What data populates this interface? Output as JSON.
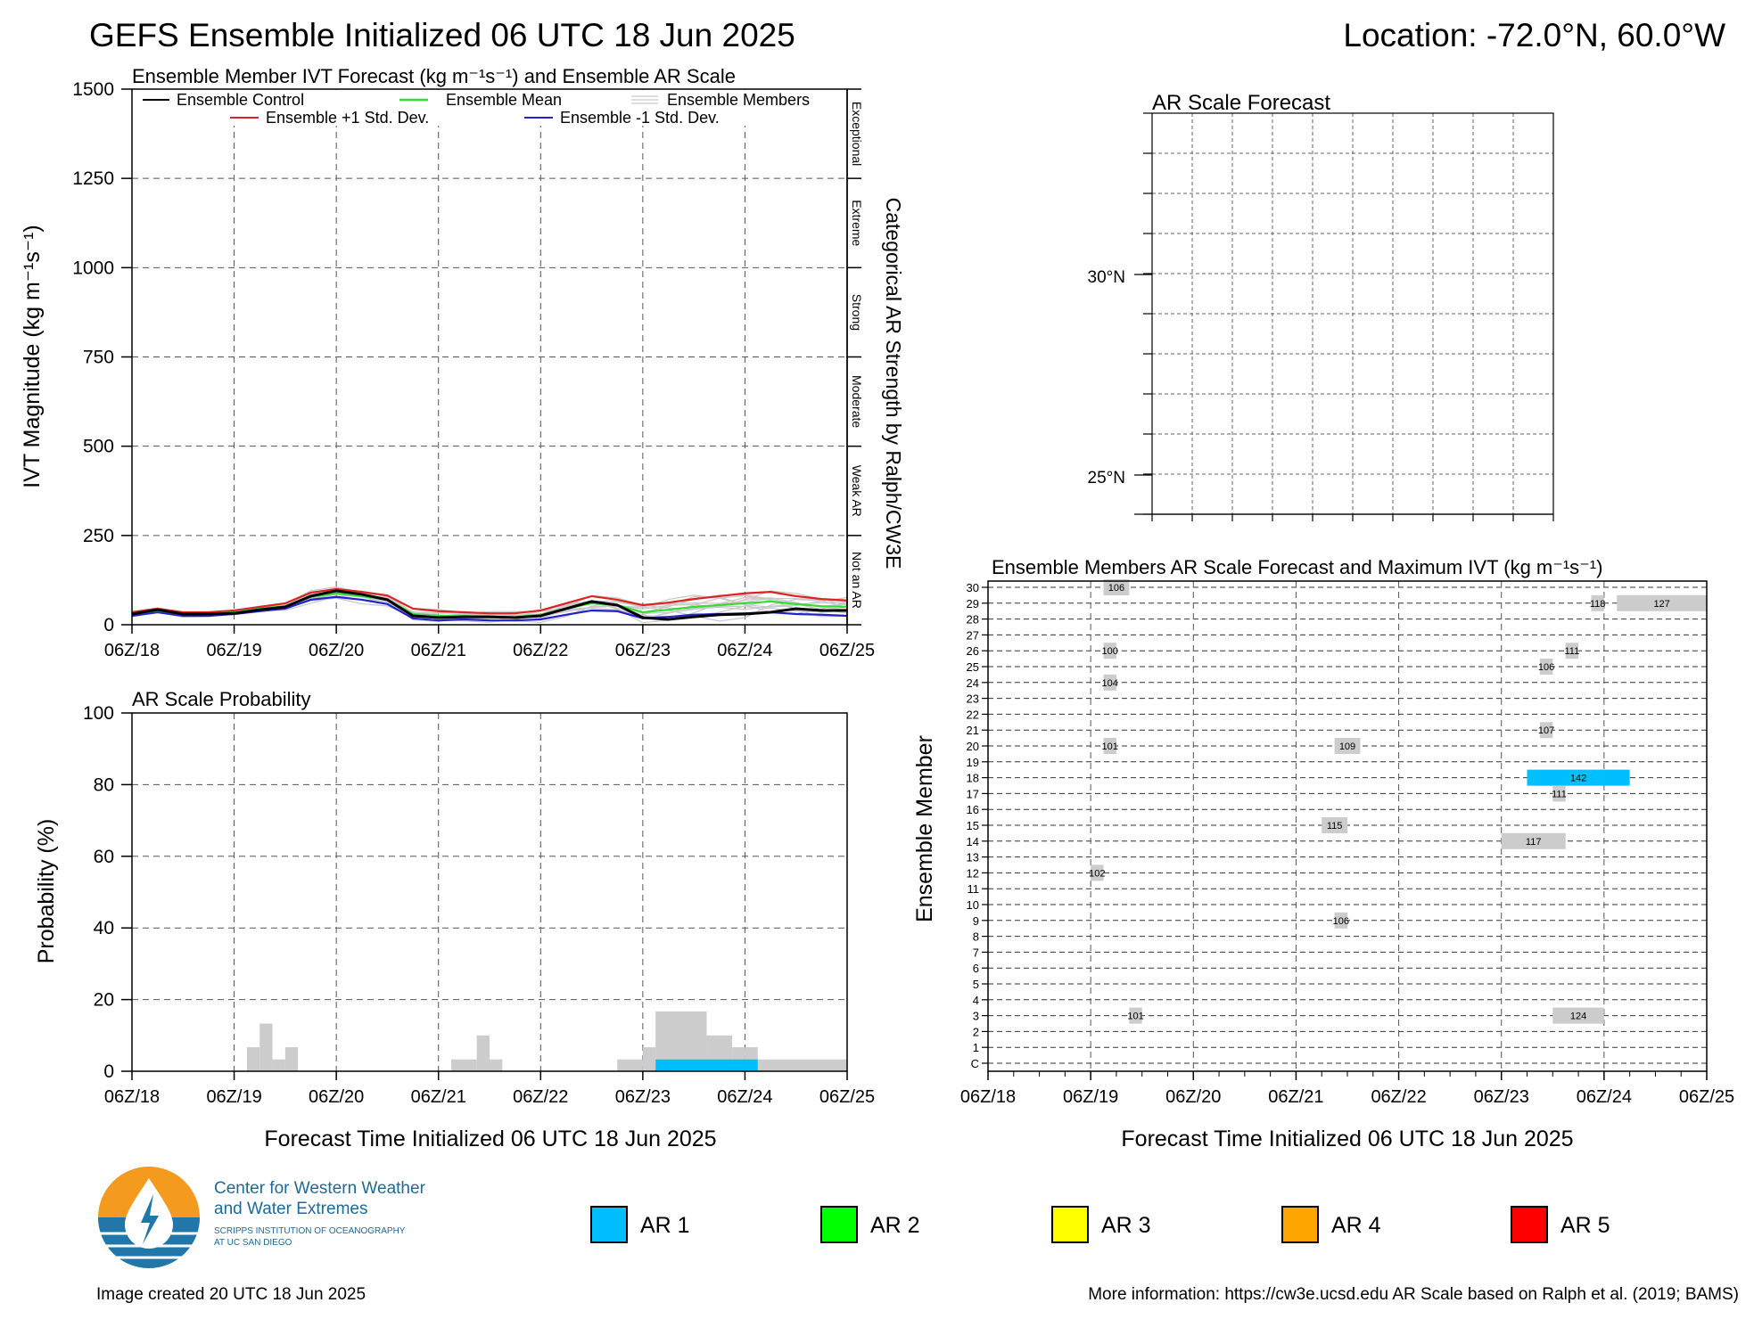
{
  "header": {
    "title": "GEFS Ensemble Initialized 06 UTC 18 Jun 2025",
    "location": "Location: -72.0°N, 60.0°W"
  },
  "x_ticks": [
    "06Z/18",
    "06Z/19",
    "06Z/20",
    "06Z/21",
    "06Z/22",
    "06Z/23",
    "06Z/24",
    "06Z/25"
  ],
  "xlabel": "Forecast Time Initialized 06 UTC 18 Jun 2025",
  "ivt_panel": {
    "title": "Ensemble Member IVT Forecast (kg m⁻¹s⁻¹) and Ensemble AR Scale",
    "ylabel": "IVT Magnitude (kg m⁻¹s⁻¹)",
    "right_label": "Categorical AR Strength by Ralph/CW3E",
    "y_ticks": [
      "0",
      "250",
      "500",
      "750",
      "1000",
      "1250",
      "1500"
    ],
    "categories": [
      "Not an AR",
      "Weak AR",
      "Moderate",
      "Strong",
      "Extreme",
      "Exceptional"
    ],
    "legend": {
      "control": "Ensemble Control",
      "mean": "Ensemble Mean",
      "members": "Ensemble Members",
      "plus": "Ensemble +1 Std. Dev.",
      "minus": "Ensemble -1 Std. Dev."
    }
  },
  "prob_panel": {
    "title": "AR Scale Probability",
    "ylabel": "Probability (%)",
    "y_ticks": [
      "0",
      "20",
      "40",
      "60",
      "80",
      "100"
    ]
  },
  "map_panel": {
    "title": "AR Scale Forecast",
    "lat_labels": [
      "30°N",
      "25°N"
    ]
  },
  "member_panel": {
    "title": "Ensemble Members AR Scale Forecast and Maximum IVT (kg m⁻¹s⁻¹)",
    "ylabel": "Ensemble Member",
    "rows": [
      "C",
      "1",
      "2",
      "3",
      "4",
      "5",
      "6",
      "7",
      "8",
      "9",
      "10",
      "11",
      "12",
      "13",
      "14",
      "15",
      "16",
      "17",
      "18",
      "19",
      "20",
      "21",
      "22",
      "23",
      "24",
      "25",
      "26",
      "27",
      "28",
      "29",
      "30"
    ]
  },
  "ar_legend": [
    {
      "label": "AR 1",
      "color": "#00bfff"
    },
    {
      "label": "AR 2",
      "color": "#00ff00"
    },
    {
      "label": "AR 3",
      "color": "#ffff00"
    },
    {
      "label": "AR 4",
      "color": "#ffa500"
    },
    {
      "label": "AR 5",
      "color": "#ff0000"
    }
  ],
  "footer": {
    "org_line1": "Center for Western Weather",
    "org_line2": "and Water Extremes",
    "org_line3": "SCRIPPS INSTITUTION OF OCEANOGRAPHY",
    "org_line4": "AT UC SAN DIEGO",
    "created": "Image created 20 UTC 18 Jun 2025",
    "more_info": "More information: https://cw3e.ucsd.edu AR Scale based on Ralph et al. (2019; BAMS)"
  },
  "chart_data": [
    {
      "type": "line",
      "title": "Ensemble Member IVT Forecast (kg m⁻¹s⁻¹) and Ensemble AR Scale",
      "ylabel": "IVT Magnitude (kg m⁻¹s⁻¹)",
      "xlabel": "",
      "ylim": [
        0,
        1500
      ],
      "x_hours": [
        0,
        6,
        12,
        18,
        24,
        30,
        36,
        42,
        48,
        54,
        60,
        66,
        72,
        78,
        84,
        90,
        96,
        102,
        108,
        114,
        120,
        126,
        132,
        138,
        144,
        150,
        156,
        162,
        168
      ],
      "series": [
        {
          "name": "Ensemble Control",
          "color": "#000000",
          "values": [
            30,
            42,
            30,
            30,
            32,
            42,
            50,
            80,
            95,
            85,
            70,
            25,
            20,
            22,
            22,
            20,
            25,
            45,
            65,
            55,
            20,
            15,
            22,
            28,
            30,
            35,
            45,
            40,
            40
          ]
        },
        {
          "name": "Ensemble Mean",
          "color": "#33dd33",
          "values": [
            30,
            40,
            30,
            30,
            35,
            45,
            52,
            78,
            88,
            80,
            70,
            30,
            25,
            25,
            22,
            22,
            28,
            45,
            60,
            55,
            35,
            42,
            50,
            55,
            60,
            65,
            58,
            52,
            50
          ]
        },
        {
          "name": "Ensemble +1 Std. Dev.",
          "color": "#dd2222",
          "values": [
            35,
            45,
            35,
            35,
            40,
            50,
            60,
            90,
            100,
            92,
            82,
            45,
            38,
            35,
            32,
            32,
            40,
            60,
            80,
            70,
            55,
            62,
            72,
            80,
            88,
            92,
            80,
            72,
            68
          ]
        },
        {
          "name": "Ensemble -1 Std. Dev.",
          "color": "#2222cc",
          "values": [
            25,
            35,
            25,
            25,
            30,
            38,
            45,
            70,
            78,
            70,
            58,
            18,
            12,
            15,
            12,
            12,
            15,
            28,
            40,
            38,
            18,
            22,
            28,
            30,
            32,
            35,
            30,
            28,
            25
          ]
        }
      ]
    },
    {
      "type": "bar",
      "title": "AR Scale Probability",
      "ylabel": "Probability (%)",
      "xlabel": "Forecast Time Initialized 06 UTC 18 Jun 2025",
      "ylim": [
        0,
        100
      ],
      "bar_hours": 3,
      "series": [
        {
          "name": "Not an AR",
          "color": "#cccccc",
          "bins": [
            [
              27,
              30,
              6.7
            ],
            [
              30,
              33,
              13.3
            ],
            [
              33,
              36,
              3.3
            ],
            [
              36,
              39,
              6.7
            ],
            [
              75,
              81,
              3.3
            ],
            [
              81,
              84,
              10
            ],
            [
              84,
              87,
              3.3
            ],
            [
              114,
              120,
              3.3
            ],
            [
              120,
              123,
              6.7
            ],
            [
              123,
              135,
              16.7
            ],
            [
              135,
              141,
              10
            ],
            [
              141,
              144,
              6.7
            ],
            [
              144,
              147,
              6.7
            ],
            [
              147,
              168,
              3.3
            ]
          ]
        },
        {
          "name": "AR 1",
          "color": "#00bfff",
          "bins": [
            [
              123,
              147,
              3.3
            ]
          ]
        }
      ]
    },
    {
      "type": "bar",
      "title": "Ensemble Members AR Scale Forecast and Maximum IVT (kg m⁻¹s⁻¹)",
      "ylabel": "Ensemble Member",
      "xlabel": "Forecast Time Initialized 06 UTC 18 Jun 2025",
      "blocks": [
        {
          "member": "30",
          "start": 27,
          "end": 33,
          "ivt": 106,
          "color": "#cccccc"
        },
        {
          "member": "29",
          "start": 141,
          "end": 144,
          "ivt": 118,
          "color": "#cccccc"
        },
        {
          "member": "29",
          "start": 147,
          "end": 168,
          "ivt": 127,
          "color": "#cccccc"
        },
        {
          "member": "26",
          "start": 27,
          "end": 30,
          "ivt": 100,
          "color": "#cccccc"
        },
        {
          "member": "26",
          "start": 135,
          "end": 138,
          "ivt": 111,
          "color": "#cccccc"
        },
        {
          "member": "25",
          "start": 129,
          "end": 132,
          "ivt": 106,
          "color": "#cccccc"
        },
        {
          "member": "24",
          "start": 27,
          "end": 30,
          "ivt": 104,
          "color": "#cccccc"
        },
        {
          "member": "21",
          "start": 129,
          "end": 132,
          "ivt": 107,
          "color": "#cccccc"
        },
        {
          "member": "20",
          "start": 27,
          "end": 30,
          "ivt": 101,
          "color": "#cccccc"
        },
        {
          "member": "20",
          "start": 81,
          "end": 87,
          "ivt": 109,
          "color": "#cccccc"
        },
        {
          "member": "18",
          "start": 126,
          "end": 150,
          "ivt": 142,
          "color": "#00bfff"
        },
        {
          "member": "17",
          "start": 132,
          "end": 135,
          "ivt": 111,
          "color": "#cccccc"
        },
        {
          "member": "15",
          "start": 78,
          "end": 84,
          "ivt": 115,
          "color": "#cccccc"
        },
        {
          "member": "14",
          "start": 120,
          "end": 135,
          "ivt": 117,
          "color": "#cccccc"
        },
        {
          "member": "12",
          "start": 24,
          "end": 27,
          "ivt": 102,
          "color": "#cccccc"
        },
        {
          "member": "9",
          "start": 81,
          "end": 84,
          "ivt": 106,
          "color": "#cccccc"
        },
        {
          "member": "3",
          "start": 33,
          "end": 36,
          "ivt": 101,
          "color": "#cccccc"
        },
        {
          "member": "3",
          "start": 132,
          "end": 144,
          "ivt": 124,
          "color": "#cccccc"
        }
      ]
    }
  ]
}
